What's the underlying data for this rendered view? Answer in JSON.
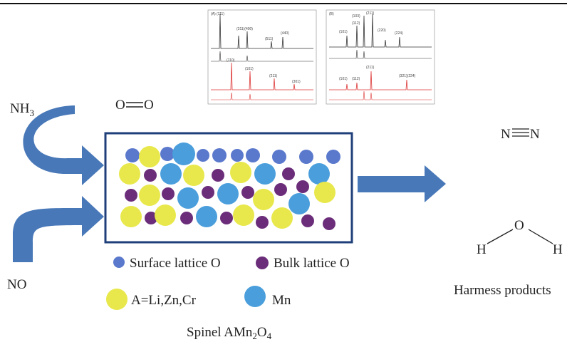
{
  "reactants": {
    "ammonia": {
      "main": "NH",
      "sub": "3"
    },
    "oxygen": {
      "atoms": [
        "O",
        "O"
      ]
    },
    "nitric_oxide": "NO"
  },
  "xrd": {
    "panel_a": {
      "label": "(A)",
      "peaks": [
        "(111)",
        "(311)(400)",
        "(511)",
        "(440)",
        "(110)",
        "(101)",
        "(211)",
        "(301)"
      ]
    },
    "panel_b": {
      "label": "(B)",
      "peaks": [
        "(101)",
        "(103)",
        "(211)",
        "(112)",
        "(220)",
        "(224)",
        "(101)",
        "(112)",
        "(211)",
        "(321)(224)"
      ]
    }
  },
  "legend": {
    "surface_o": "Surface lattice O",
    "bulk_o": "Bulk lattice O",
    "a_site": "A=Li,Zn,Cr",
    "mn": "Mn"
  },
  "caption": {
    "parts": [
      "Spinel AMn",
      "2",
      "O",
      "4"
    ]
  },
  "products": {
    "nitrogen": {
      "atoms": [
        "N",
        "N"
      ]
    },
    "water": {
      "atoms": [
        "H",
        "O",
        "H"
      ]
    },
    "label": "Harmess products"
  }
}
